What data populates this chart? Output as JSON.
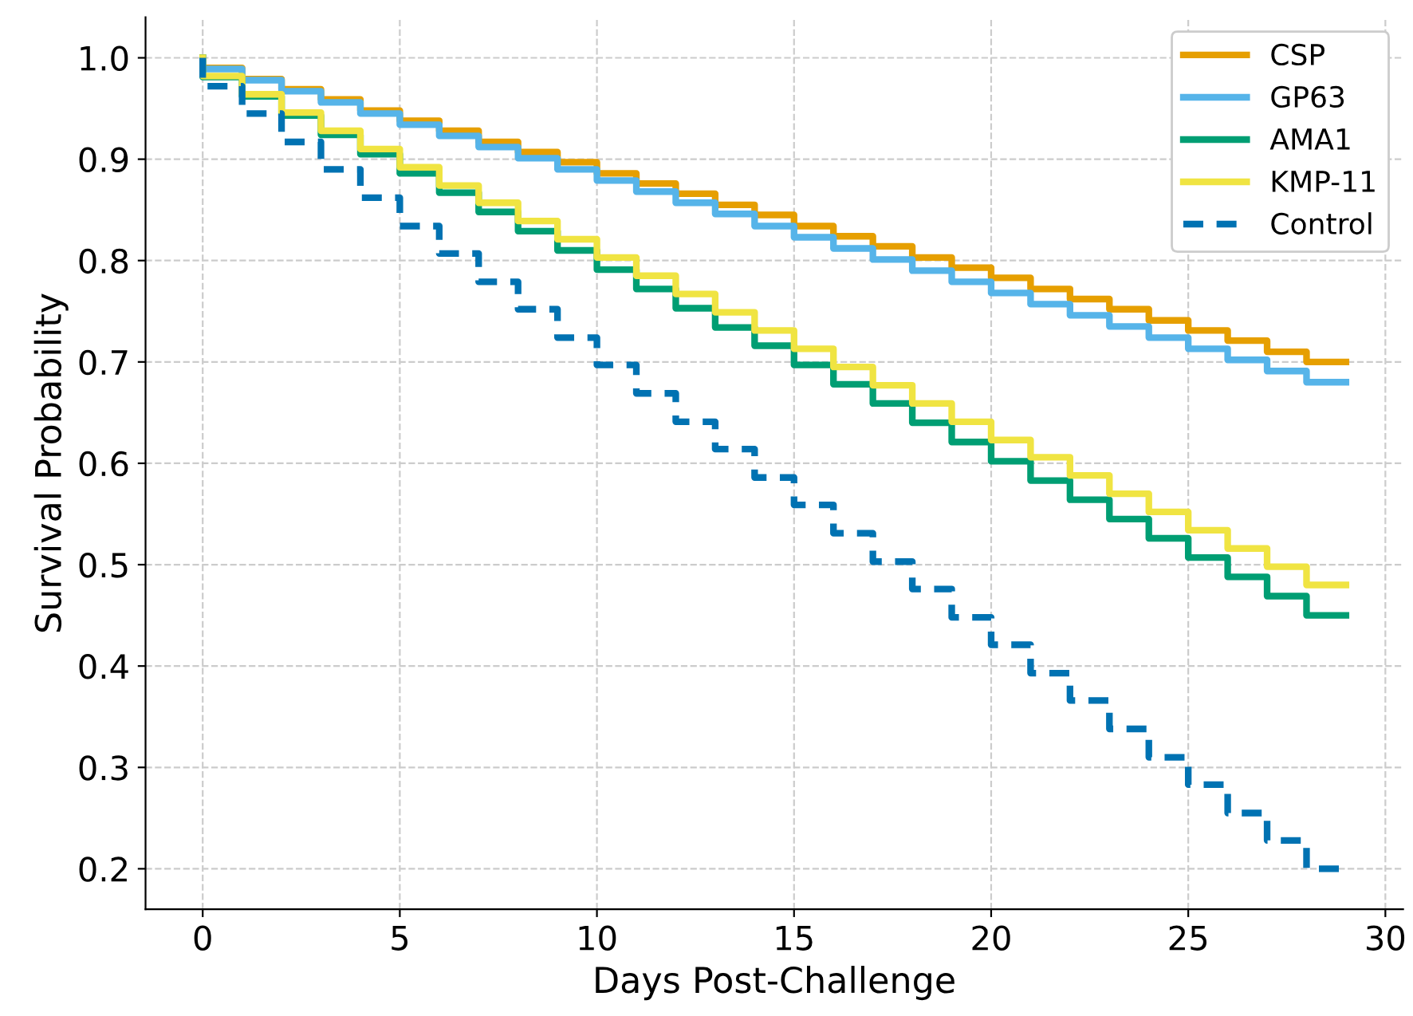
{
  "chart_data": {
    "type": "step",
    "xlabel": "Days Post-Challenge",
    "ylabel": "Survival Probability",
    "x": [
      0,
      1,
      2,
      3,
      4,
      5,
      6,
      7,
      8,
      9,
      10,
      11,
      12,
      13,
      14,
      15,
      16,
      17,
      18,
      19,
      20,
      21,
      22,
      23,
      24,
      25,
      26,
      27,
      28,
      29
    ],
    "series": [
      {
        "name": "CSP",
        "color": "#e69f00",
        "line_style": "solid",
        "values": [
          1.0,
          0.99,
          0.979,
          0.969,
          0.959,
          0.948,
          0.938,
          0.928,
          0.917,
          0.907,
          0.897,
          0.886,
          0.876,
          0.866,
          0.855,
          0.845,
          0.834,
          0.824,
          0.814,
          0.803,
          0.793,
          0.783,
          0.772,
          0.762,
          0.752,
          0.741,
          0.731,
          0.721,
          0.71,
          0.7
        ]
      },
      {
        "name": "GP63",
        "color": "#56b4e9",
        "line_style": "solid",
        "values": [
          1.0,
          0.989,
          0.978,
          0.967,
          0.956,
          0.945,
          0.934,
          0.923,
          0.912,
          0.901,
          0.89,
          0.879,
          0.868,
          0.857,
          0.846,
          0.834,
          0.823,
          0.812,
          0.801,
          0.79,
          0.779,
          0.768,
          0.757,
          0.746,
          0.735,
          0.724,
          0.713,
          0.702,
          0.691,
          0.68
        ]
      },
      {
        "name": "AMA1",
        "color": "#009e73",
        "line_style": "solid",
        "values": [
          1.0,
          0.981,
          0.962,
          0.943,
          0.924,
          0.905,
          0.886,
          0.867,
          0.848,
          0.829,
          0.81,
          0.791,
          0.772,
          0.753,
          0.734,
          0.716,
          0.697,
          0.678,
          0.659,
          0.64,
          0.621,
          0.602,
          0.583,
          0.564,
          0.545,
          0.526,
          0.507,
          0.488,
          0.469,
          0.45
        ]
      },
      {
        "name": "KMP-11",
        "color": "#f0e442",
        "line_style": "solid",
        "values": [
          1.0,
          0.982,
          0.964,
          0.946,
          0.928,
          0.91,
          0.892,
          0.874,
          0.857,
          0.839,
          0.821,
          0.803,
          0.785,
          0.767,
          0.749,
          0.731,
          0.713,
          0.695,
          0.677,
          0.659,
          0.641,
          0.623,
          0.606,
          0.588,
          0.57,
          0.552,
          0.534,
          0.516,
          0.498,
          0.48
        ]
      },
      {
        "name": "Control",
        "color": "#0072b2",
        "line_style": "dashed",
        "values": [
          1.0,
          0.972,
          0.945,
          0.917,
          0.89,
          0.862,
          0.834,
          0.807,
          0.779,
          0.752,
          0.724,
          0.697,
          0.669,
          0.641,
          0.614,
          0.586,
          0.559,
          0.531,
          0.503,
          0.476,
          0.448,
          0.421,
          0.393,
          0.366,
          0.338,
          0.31,
          0.283,
          0.255,
          0.228,
          0.2
        ]
      }
    ],
    "xlim": [
      -1.45,
      30.45
    ],
    "ylim": [
      0.16,
      1.04
    ],
    "xticks": [
      0,
      5,
      10,
      15,
      20,
      25,
      30
    ],
    "yticks": [
      {
        "value": 0.2,
        "label": "0.2"
      },
      {
        "value": 0.3,
        "label": "0.3"
      },
      {
        "value": 0.4,
        "label": "0.4"
      },
      {
        "value": 0.5,
        "label": "0.5"
      },
      {
        "value": 0.6,
        "label": "0.6"
      },
      {
        "value": 0.7,
        "label": "0.7"
      },
      {
        "value": 0.8,
        "label": "0.8"
      },
      {
        "value": 0.9,
        "label": "0.9"
      },
      {
        "value": 1.0,
        "label": "1.0"
      }
    ],
    "grid": true,
    "legend": "top right",
    "marker": "none"
  }
}
